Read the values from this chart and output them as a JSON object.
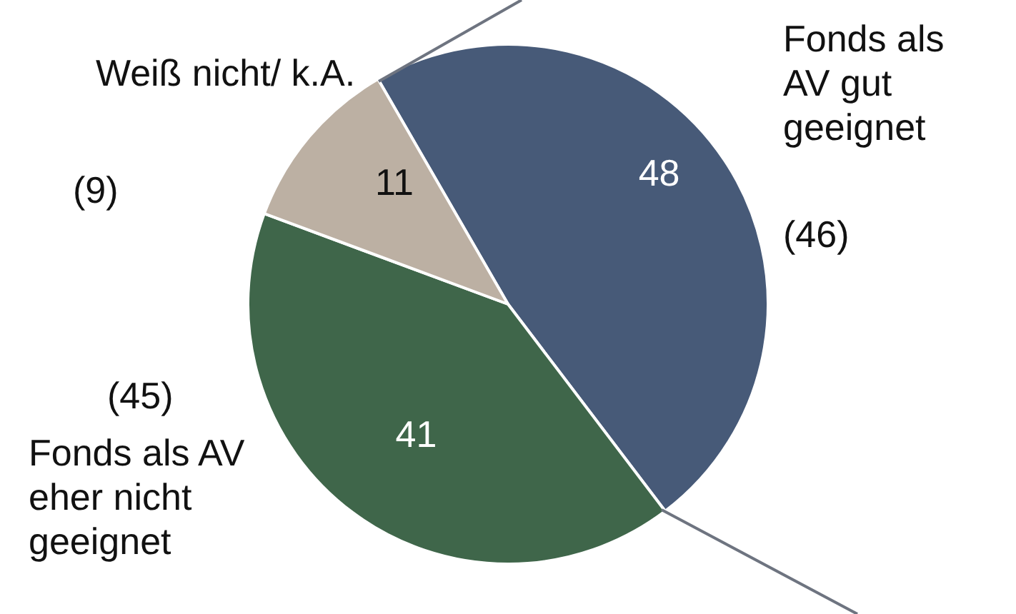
{
  "chart_data": {
    "type": "pie",
    "categories": [
      "Fonds als AV gut geeignet",
      "Fonds als AV eher nicht geeignet",
      "Weiß nicht/ k.A."
    ],
    "values": [
      48,
      41,
      11
    ],
    "colors": [
      "#475a78",
      "#3f664a",
      "#bcb0a3"
    ],
    "data_labels": true,
    "legend": false,
    "annotations": [
      "(46)",
      "(45)",
      "(9)"
    ]
  }
}
